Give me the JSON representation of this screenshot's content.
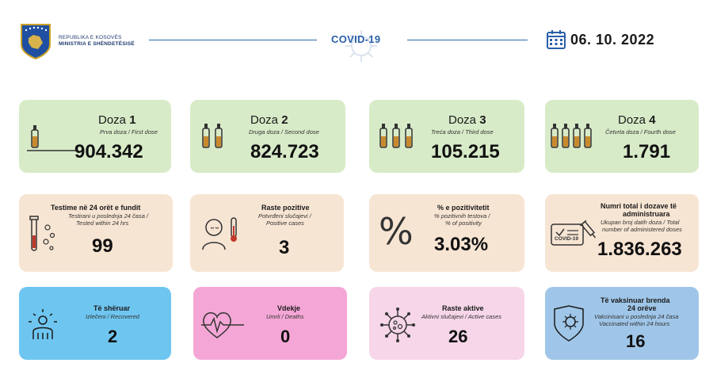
{
  "header": {
    "ministry_line1": "REPUBLIKA E KOSOVËS",
    "ministry_line2": "MINISTRIA E SHËNDETËSISË",
    "title": "COVID-19",
    "date": "06. 10. 2022"
  },
  "doses": [
    {
      "label": "Doza",
      "number": "1",
      "subtitle": "Prva doza / First dose",
      "value": "904.342"
    },
    {
      "label": "Doza",
      "number": "2",
      "subtitle": "Druga doza / Second dose",
      "value": "824.723"
    },
    {
      "label": "Doza",
      "number": "3",
      "subtitle": "Treća doza / Third dose",
      "value": "105.215"
    },
    {
      "label": "Doza",
      "number": "4",
      "subtitle": "Četvrta doza / Fourth dose",
      "value": "1.791"
    }
  ],
  "tests": {
    "title": "Testime në 24 orët e fundit",
    "sub1": "Testirani u poslednja 24 časa /",
    "sub2": "Tested within 24 hrs",
    "value": "99"
  },
  "positive": {
    "title": "Raste pozitive",
    "sub1": "Potvrđeni slučajevi /",
    "sub2": "Positive cases",
    "value": "3"
  },
  "positivity": {
    "title": "% e pozitivitetit",
    "sub1": "% pozitivnih testova /",
    "sub2": "% of positivity",
    "value": "3.03%",
    "symbol": "%"
  },
  "total_doses": {
    "title1": "Numri total i dozave të",
    "title2": "administruara",
    "sub1": "Ukupan broj datih doza / Total",
    "sub2": "number of administered doses",
    "value": "1.836.263",
    "badge": "COVID-19"
  },
  "recovered": {
    "title": "Të shëruar",
    "sub": "Izlečeni / Recovered",
    "value": "2"
  },
  "deaths": {
    "title": "Vdekje",
    "sub": "Umrli / Deaths",
    "value": "0"
  },
  "active": {
    "title": "Raste aktive",
    "sub": "Aktivni slučajevi / Active cases",
    "value": "26"
  },
  "vaccinated24": {
    "title1": "Të vaksinuar brenda",
    "title2": "24 orëve",
    "sub1": "Vakcinisani u poslednja 24 časa",
    "sub2": "Vaccinated within 24 hours",
    "value": "16"
  },
  "colors": {
    "dose_bg": "#d8ebc8",
    "row2_bg": "#f7e5d3",
    "recovered_bg": "#6ec6f0",
    "deaths_bg": "#f4a6d6",
    "active_bg": "#f6d6e8",
    "vacc_bg": "#9fc6e8",
    "accent": "#2a5fa8"
  }
}
